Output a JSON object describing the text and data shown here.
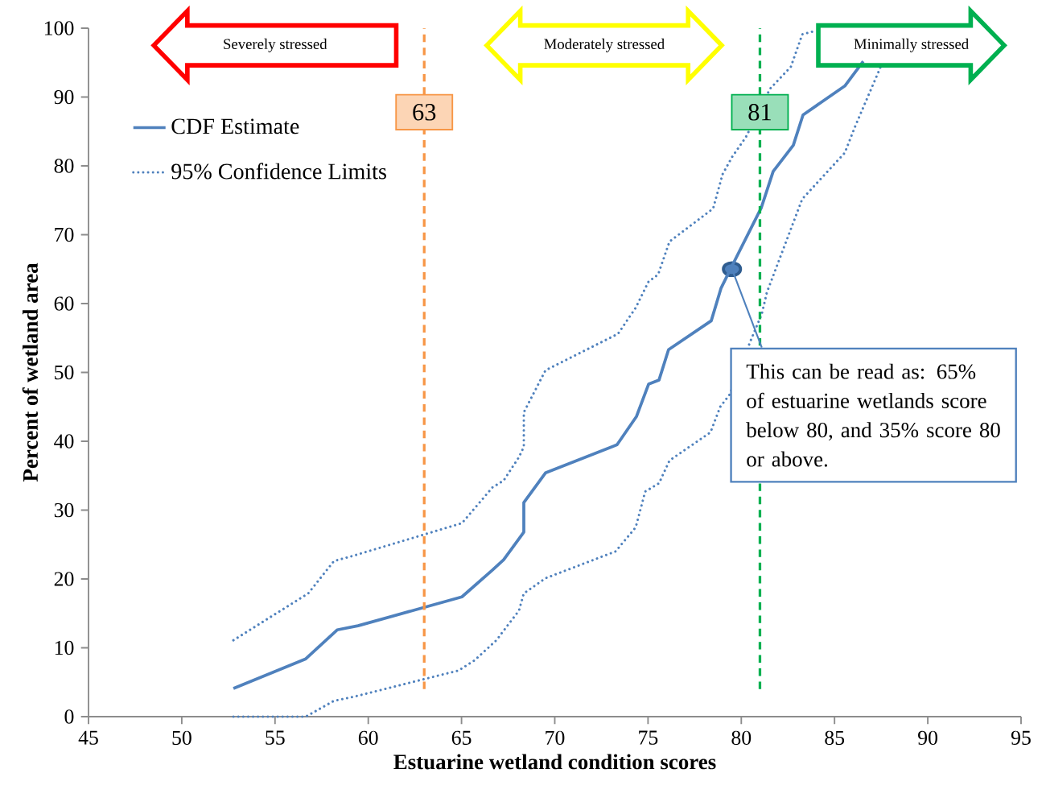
{
  "chart_data": {
    "type": "line",
    "xlabel": "Estuarine wetland condition scores",
    "ylabel": "Percent of wetland area",
    "xlim": [
      45,
      95
    ],
    "ylim": [
      0,
      100
    ],
    "xticks": [
      45,
      50,
      55,
      60,
      65,
      70,
      75,
      80,
      85,
      90,
      95
    ],
    "yticks": [
      0,
      10,
      20,
      30,
      40,
      50,
      60,
      70,
      80,
      90,
      100
    ],
    "grid": false,
    "legend": "top left",
    "marker": "none",
    "series": [
      {
        "name": "CDF Estimate",
        "color": "#4f81bd",
        "line_style": "solid",
        "x": [
          52.77,
          56.65,
          58.33,
          59.45,
          65.02,
          66.66,
          67.26,
          68.34,
          68.34,
          69.5,
          73.34,
          74.38,
          75.03,
          75.59,
          76.1,
          78.39,
          78.91,
          79.51,
          81.07,
          81.71,
          82.79,
          83.31,
          85.55,
          86.54
        ],
        "values": [
          4.1,
          8.4,
          12.6,
          13.2,
          17.4,
          21.3,
          22.8,
          26.8,
          31.1,
          35.4,
          39.5,
          43.6,
          48.3,
          48.9,
          53.3,
          57.5,
          62.2,
          65.5,
          73.9,
          79.2,
          83.0,
          87.4,
          91.6,
          95.2
        ]
      },
      {
        "name": "95% Confidence Limits",
        "color": "#4f81bd",
        "line_style": "dotted",
        "x": [
          52.77,
          56.65,
          58.16,
          59.24,
          64.84,
          65.71,
          66.87,
          67.43,
          68.08,
          68.34,
          69.5,
          73.26,
          74.34,
          74.85,
          75.59,
          76.15,
          78.35,
          78.87,
          79.38,
          80.5,
          81.1,
          81.37,
          83.27,
          85.55,
          86.1,
          87.49
        ],
        "values": [
          0,
          0,
          2.3,
          2.9,
          6.7,
          8.2,
          11.1,
          13.1,
          15.4,
          17.9,
          20.1,
          24.0,
          27.5,
          32.7,
          33.9,
          37.2,
          41.3,
          45.0,
          46.8,
          54.6,
          58.5,
          61.6,
          75.2,
          81.9,
          85.7,
          94.5
        ]
      },
      {
        "color": "#4f81bd",
        "line_style": "dotted",
        "x": [
          52.77,
          56.78,
          58.16,
          59.24,
          65.02,
          66.66,
          67.26,
          68.08,
          68.34,
          68.34,
          69.5,
          73.39,
          74.34,
          75.03,
          75.54,
          76.15,
          78.49,
          79.0,
          79.51,
          80.25,
          81.54,
          82.66,
          83.27,
          83.96
        ],
        "values": [
          11.1,
          17.9,
          22.6,
          23.4,
          28.1,
          33.3,
          34.3,
          37.7,
          39.2,
          44.2,
          50.3,
          55.6,
          59.4,
          63.2,
          64.2,
          69.0,
          73.8,
          78.8,
          81.3,
          84.2,
          91.2,
          94.4,
          99.1,
          99.6
        ]
      }
    ],
    "ref_lines": [
      {
        "axis": "x",
        "value": 63,
        "label": "63",
        "color": "#f79646",
        "line_style": "dashed"
      },
      {
        "axis": "x",
        "value": 81,
        "label": "81",
        "color": "#00b050",
        "line_style": "dashed"
      }
    ],
    "annotations": [
      "Severely stressed",
      "Moderately stressed",
      "Minimally stressed",
      {
        "text": "This can be read as: 65% of estuarine wetlands score below 80, and 35% score 80 or above.",
        "x": 79.5,
        "y": 65
      }
    ]
  }
}
